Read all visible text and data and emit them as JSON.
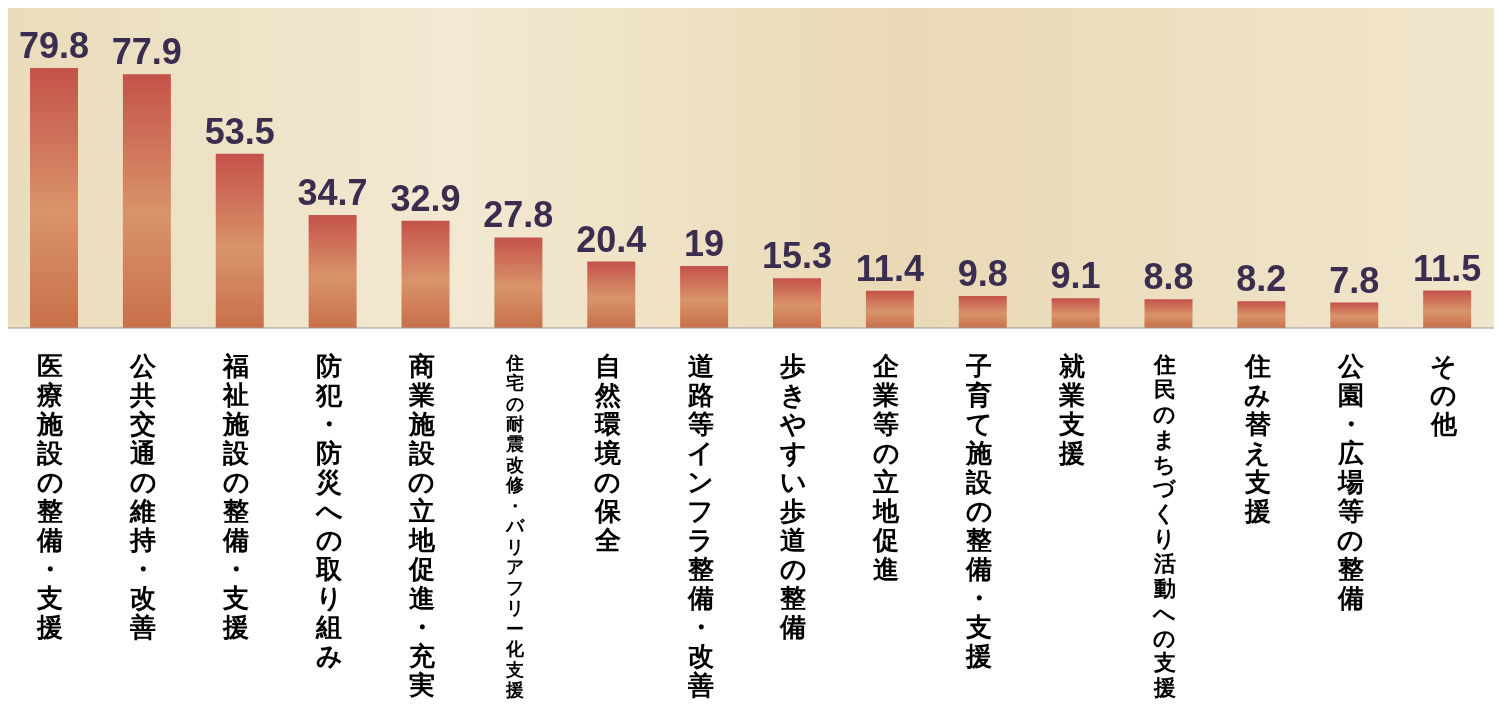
{
  "chart_data": {
    "type": "bar",
    "categories": [
      "医療施設の整備・支援",
      "公共交通の維持・改善",
      "福祉施設の整備・支援",
      "防犯・防災への取り組み",
      "商業施設の立地促進・充実",
      "住宅の耐震改修・バリアフリー化支援",
      "自然環境の保全",
      "道路等インフラ整備・改善",
      "歩きやすい歩道の整備",
      "企業等の立地促進",
      "子育て施設の整備・支援",
      "就業支援",
      "住民のまちづくり活動への支援",
      "住み替え支援",
      "公園・広場等の整備",
      "その他"
    ],
    "values": [
      79.8,
      77.9,
      53.5,
      34.7,
      32.9,
      27.8,
      20.4,
      19,
      15.3,
      11.4,
      9.8,
      9.1,
      8.8,
      8.2,
      7.8,
      11.5
    ],
    "color": "#c4524a",
    "data_labels": true,
    "grid": false,
    "legend": false
  }
}
